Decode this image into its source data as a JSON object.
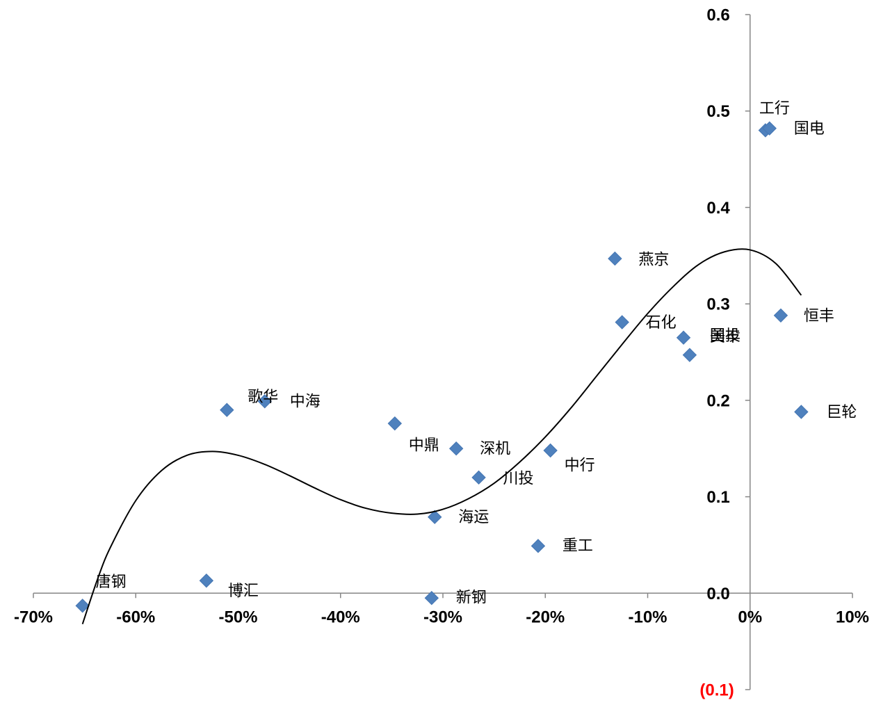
{
  "chart_data": {
    "type": "scatter",
    "title": "",
    "xlabel": "",
    "ylabel": "",
    "xlim": [
      -70,
      10
    ],
    "ylim": [
      -0.1,
      0.6
    ],
    "grid": false,
    "legend": "none",
    "x_ticks": [
      {
        "value": -70,
        "label": "-70%"
      },
      {
        "value": -60,
        "label": "-60%"
      },
      {
        "value": -50,
        "label": "-50%"
      },
      {
        "value": -40,
        "label": "-40%"
      },
      {
        "value": -30,
        "label": "-30%"
      },
      {
        "value": -20,
        "label": "-20%"
      },
      {
        "value": -10,
        "label": "-10%"
      },
      {
        "value": 0,
        "label": "0%"
      },
      {
        "value": 10,
        "label": "10%"
      }
    ],
    "y_ticks": [
      {
        "value": 0.6,
        "label": "0.6"
      },
      {
        "value": 0.5,
        "label": "0.5"
      },
      {
        "value": 0.4,
        "label": "0.4"
      },
      {
        "value": 0.3,
        "label": "0.3"
      },
      {
        "value": 0.2,
        "label": "0.2"
      },
      {
        "value": 0.1,
        "label": "0.1"
      },
      {
        "value": 0.0,
        "label": "0.0"
      },
      {
        "value": -0.1,
        "label": "(0.1)",
        "color": "#FF0000"
      }
    ],
    "points": [
      {
        "label": "唐钢",
        "x": -65.2,
        "y": -0.013
      },
      {
        "label": "博汇",
        "x": -53.1,
        "y": 0.013
      },
      {
        "label": "歌华",
        "x": -51.1,
        "y": 0.19
      },
      {
        "label": "中海",
        "x": -47.4,
        "y": 0.199
      },
      {
        "label": "中鼎",
        "x": -34.7,
        "y": 0.176
      },
      {
        "label": "新钢",
        "x": -31.1,
        "y": -0.005
      },
      {
        "label": "海运",
        "x": -30.8,
        "y": 0.079
      },
      {
        "label": "深机",
        "x": -28.7,
        "y": 0.15
      },
      {
        "label": "川投",
        "x": -26.5,
        "y": 0.12
      },
      {
        "label": "重工",
        "x": -20.7,
        "y": 0.049
      },
      {
        "label": "中行",
        "x": -19.5,
        "y": 0.148
      },
      {
        "label": "燕京",
        "x": -13.2,
        "y": 0.347
      },
      {
        "label": "石化",
        "x": -12.5,
        "y": 0.281
      },
      {
        "label": "国投",
        "x": -5.9,
        "y": 0.247
      },
      {
        "label": "美丰",
        "x": -6.5,
        "y": 0.265
      },
      {
        "label": "工行",
        "x": 1.5,
        "y": 0.48
      },
      {
        "label": "国电",
        "x": 1.9,
        "y": 0.482
      },
      {
        "label": "恒丰",
        "x": 3.0,
        "y": 0.288
      },
      {
        "label": "巨轮",
        "x": 5.0,
        "y": 0.188
      }
    ],
    "trendline": {
      "points": [
        [
          -65.2,
          -0.032
        ],
        [
          -63.75,
          0.014
        ],
        [
          -62.5,
          0.047
        ],
        [
          -60,
          0.096
        ],
        [
          -57.5,
          0.127
        ],
        [
          -55,
          0.143
        ],
        [
          -52.5,
          0.147
        ],
        [
          -50,
          0.143
        ],
        [
          -47.5,
          0.134
        ],
        [
          -45,
          0.122
        ],
        [
          -42.5,
          0.109
        ],
        [
          -40,
          0.097
        ],
        [
          -37.5,
          0.088
        ],
        [
          -35,
          0.083
        ],
        [
          -32.5,
          0.082
        ],
        [
          -30,
          0.087
        ],
        [
          -27.5,
          0.098
        ],
        [
          -25,
          0.114
        ],
        [
          -22.5,
          0.136
        ],
        [
          -20,
          0.162
        ],
        [
          -17.5,
          0.192
        ],
        [
          -15,
          0.225
        ],
        [
          -12.5,
          0.258
        ],
        [
          -10,
          0.29
        ],
        [
          -7.5,
          0.318
        ],
        [
          -5,
          0.341
        ],
        [
          -2.5,
          0.354
        ],
        [
          0,
          0.356
        ],
        [
          2.5,
          0.342
        ],
        [
          5,
          0.309
        ]
      ]
    },
    "colors": {
      "marker": "#4F81BD",
      "marker_border": "#4576B3",
      "trendline": "#000000",
      "axis": "#868686",
      "labels": "#000000"
    }
  }
}
